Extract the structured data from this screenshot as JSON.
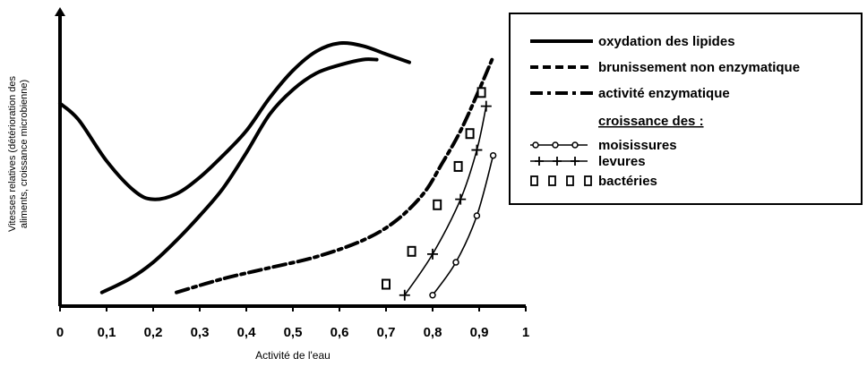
{
  "chart_data": {
    "type": "line",
    "xlabel": "Activité de l'eau",
    "ylabel": [
      "Vitesses relatives (détérioration des",
      "aliments, croissance microbienne)"
    ],
    "xlim": [
      0,
      1
    ],
    "ylim": [
      0,
      1
    ],
    "x_ticks": [
      "0",
      "0,1",
      "0,2",
      "0,3",
      "0,4",
      "0,5",
      "0,6",
      "0,7",
      "0,8",
      "0,9",
      "1"
    ],
    "grid": false,
    "legend_position": "top-right",
    "legend_subtitle": "croissance des :",
    "series": [
      {
        "name": "oxydation des lipides",
        "style": "solid",
        "segments": [
          [
            [
              0.0,
              0.74
            ],
            [
              0.04,
              0.68
            ],
            [
              0.1,
              0.53
            ],
            [
              0.16,
              0.42
            ],
            [
              0.2,
              0.39
            ],
            [
              0.25,
              0.41
            ],
            [
              0.3,
              0.47
            ],
            [
              0.35,
              0.55
            ],
            [
              0.4,
              0.64
            ],
            [
              0.45,
              0.76
            ],
            [
              0.5,
              0.86
            ],
            [
              0.55,
              0.93
            ],
            [
              0.6,
              0.96
            ],
            [
              0.65,
              0.95
            ],
            [
              0.7,
              0.92
            ],
            [
              0.75,
              0.89
            ]
          ],
          [
            [
              0.09,
              0.05
            ],
            [
              0.15,
              0.1
            ],
            [
              0.2,
              0.16
            ],
            [
              0.25,
              0.24
            ],
            [
              0.3,
              0.33
            ],
            [
              0.35,
              0.43
            ],
            [
              0.4,
              0.56
            ],
            [
              0.45,
              0.7
            ],
            [
              0.5,
              0.79
            ],
            [
              0.55,
              0.85
            ],
            [
              0.6,
              0.88
            ],
            [
              0.65,
              0.9
            ],
            [
              0.68,
              0.9
            ]
          ]
        ]
      },
      {
        "name": "brunissement non enzymatique",
        "style": "dashed",
        "segments": []
      },
      {
        "name": "activité enzymatique",
        "style": "dash-dot",
        "segments": [
          [
            [
              0.25,
              0.05
            ],
            [
              0.35,
              0.1
            ],
            [
              0.45,
              0.14
            ],
            [
              0.55,
              0.18
            ],
            [
              0.65,
              0.24
            ],
            [
              0.72,
              0.31
            ],
            [
              0.78,
              0.41
            ],
            [
              0.82,
              0.52
            ],
            [
              0.86,
              0.64
            ],
            [
              0.9,
              0.79
            ],
            [
              0.93,
              0.91
            ]
          ]
        ]
      },
      {
        "name": "moisissures",
        "marker": "circle",
        "points": [
          [
            0.8,
            0.04
          ],
          [
            0.85,
            0.16
          ],
          [
            0.895,
            0.33
          ],
          [
            0.93,
            0.55
          ]
        ]
      },
      {
        "name": "levures",
        "marker": "plus",
        "points": [
          [
            0.74,
            0.04
          ],
          [
            0.8,
            0.19
          ],
          [
            0.86,
            0.39
          ],
          [
            0.895,
            0.57
          ],
          [
            0.915,
            0.73
          ]
        ]
      },
      {
        "name": "bactéries",
        "marker": "square",
        "points": [
          [
            0.7,
            0.08
          ],
          [
            0.755,
            0.2
          ],
          [
            0.81,
            0.37
          ],
          [
            0.855,
            0.51
          ],
          [
            0.88,
            0.63
          ],
          [
            0.905,
            0.78
          ]
        ]
      }
    ]
  }
}
